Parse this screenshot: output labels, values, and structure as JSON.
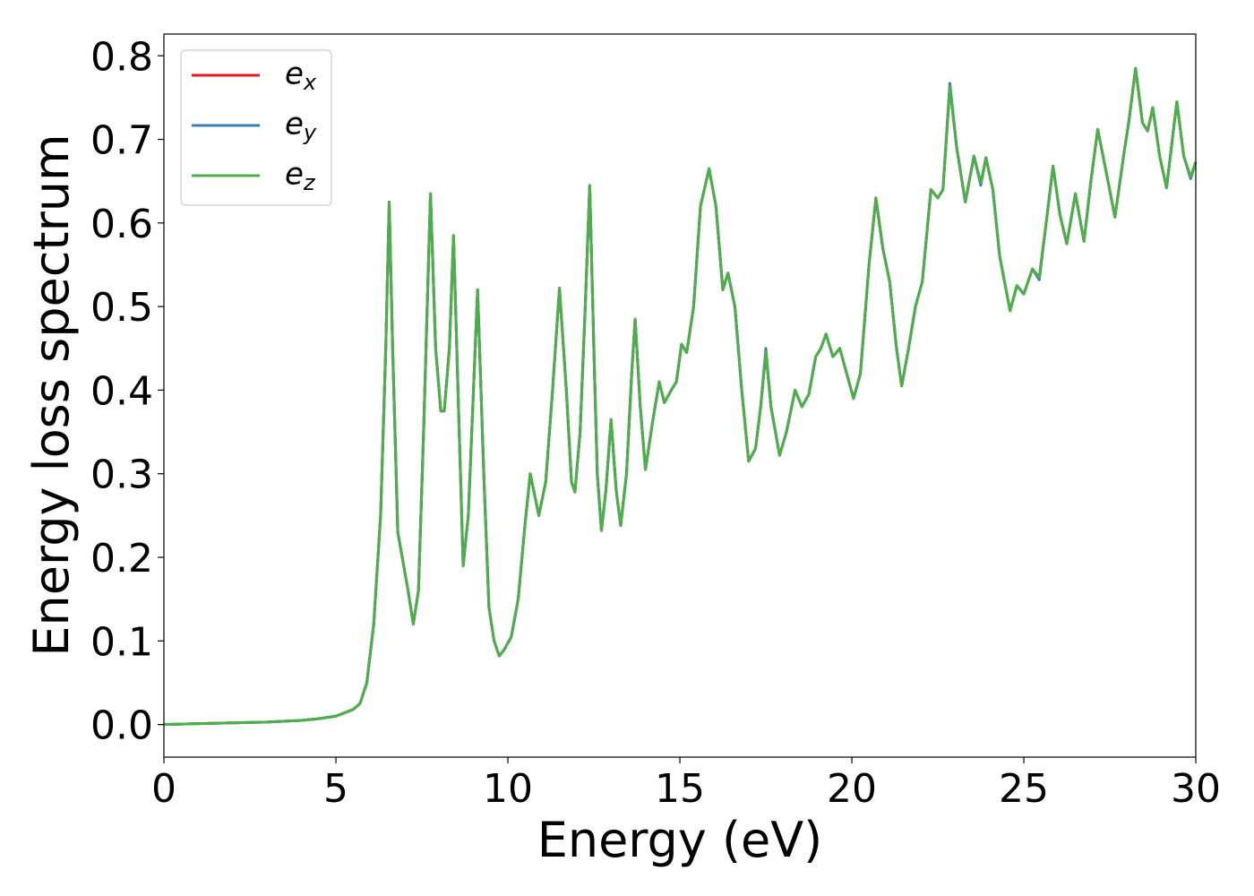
{
  "chart_data": {
    "type": "line",
    "xlabel": "Energy (eV)",
    "ylabel": "Energy loss spectrum",
    "x": [
      0,
      1,
      2,
      3,
      4,
      4.5,
      5,
      5.5,
      5.7,
      5.9,
      6.1,
      6.3,
      6.45,
      6.55,
      6.65,
      6.8,
      6.95,
      7.1,
      7.25,
      7.4,
      7.55,
      7.75,
      7.9,
      8.05,
      8.15,
      8.3,
      8.42,
      8.55,
      8.7,
      8.85,
      9.0,
      9.12,
      9.3,
      9.45,
      9.6,
      9.75,
      9.9,
      10.1,
      10.3,
      10.5,
      10.65,
      10.8,
      10.9,
      11.1,
      11.3,
      11.5,
      11.7,
      11.85,
      11.95,
      12.1,
      12.25,
      12.38,
      12.5,
      12.6,
      12.72,
      12.85,
      13.0,
      13.15,
      13.28,
      13.45,
      13.6,
      13.7,
      13.85,
      14.0,
      14.2,
      14.4,
      14.55,
      14.75,
      14.9,
      15.05,
      15.2,
      15.4,
      15.6,
      15.85,
      16.05,
      16.25,
      16.4,
      16.6,
      16.8,
      17.0,
      17.2,
      17.35,
      17.5,
      17.65,
      17.9,
      18.1,
      18.35,
      18.55,
      18.75,
      18.95,
      19.1,
      19.25,
      19.45,
      19.65,
      19.85,
      20.05,
      20.25,
      20.5,
      20.7,
      20.9,
      21.1,
      21.3,
      21.45,
      21.65,
      21.85,
      22.05,
      22.3,
      22.5,
      22.65,
      22.85,
      23.05,
      23.3,
      23.55,
      23.75,
      23.9,
      24.1,
      24.3,
      24.6,
      24.8,
      25.0,
      25.25,
      25.45,
      25.65,
      25.85,
      26.05,
      26.25,
      26.5,
      26.75,
      26.95,
      27.15,
      27.4,
      27.65,
      27.9,
      28.05,
      28.25,
      28.45,
      28.6,
      28.75,
      28.95,
      29.15,
      29.45,
      29.65,
      29.85,
      30.0
    ],
    "series": [
      {
        "name": "ex",
        "color": "#e41a1c",
        "values": [
          0,
          0.001,
          0.002,
          0.003,
          0.005,
          0.007,
          0.01,
          0.018,
          0.025,
          0.05,
          0.12,
          0.25,
          0.45,
          0.625,
          0.45,
          0.23,
          0.195,
          0.16,
          0.12,
          0.16,
          0.35,
          0.635,
          0.45,
          0.375,
          0.375,
          0.45,
          0.585,
          0.4,
          0.19,
          0.25,
          0.4,
          0.52,
          0.3,
          0.14,
          0.1,
          0.082,
          0.09,
          0.105,
          0.15,
          0.24,
          0.3,
          0.27,
          0.25,
          0.29,
          0.4,
          0.522,
          0.4,
          0.29,
          0.278,
          0.35,
          0.5,
          0.645,
          0.45,
          0.3,
          0.232,
          0.28,
          0.365,
          0.28,
          0.238,
          0.3,
          0.42,
          0.485,
          0.38,
          0.305,
          0.36,
          0.41,
          0.385,
          0.4,
          0.41,
          0.455,
          0.445,
          0.5,
          0.62,
          0.665,
          0.62,
          0.52,
          0.54,
          0.5,
          0.4,
          0.315,
          0.33,
          0.38,
          0.445,
          0.38,
          0.322,
          0.35,
          0.4,
          0.38,
          0.395,
          0.44,
          0.45,
          0.467,
          0.44,
          0.45,
          0.42,
          0.39,
          0.42,
          0.55,
          0.63,
          0.57,
          0.53,
          0.45,
          0.405,
          0.45,
          0.5,
          0.53,
          0.64,
          0.63,
          0.64,
          0.763,
          0.69,
          0.625,
          0.68,
          0.648,
          0.678,
          0.64,
          0.56,
          0.495,
          0.525,
          0.515,
          0.545,
          0.535,
          0.6,
          0.668,
          0.61,
          0.575,
          0.635,
          0.578,
          0.65,
          0.712,
          0.66,
          0.607,
          0.68,
          0.72,
          0.785,
          0.72,
          0.71,
          0.738,
          0.68,
          0.642,
          0.745,
          0.68,
          0.655,
          0.673
        ]
      },
      {
        "name": "ey",
        "color": "#377eb8",
        "values": [
          0,
          0.001,
          0.002,
          0.003,
          0.005,
          0.007,
          0.01,
          0.018,
          0.025,
          0.05,
          0.12,
          0.25,
          0.45,
          0.625,
          0.45,
          0.23,
          0.195,
          0.16,
          0.12,
          0.16,
          0.35,
          0.635,
          0.45,
          0.375,
          0.375,
          0.45,
          0.585,
          0.4,
          0.19,
          0.25,
          0.4,
          0.52,
          0.3,
          0.14,
          0.1,
          0.082,
          0.09,
          0.105,
          0.15,
          0.24,
          0.3,
          0.27,
          0.25,
          0.29,
          0.4,
          0.522,
          0.4,
          0.29,
          0.278,
          0.35,
          0.5,
          0.645,
          0.45,
          0.3,
          0.232,
          0.28,
          0.365,
          0.28,
          0.238,
          0.3,
          0.42,
          0.485,
          0.38,
          0.305,
          0.36,
          0.41,
          0.385,
          0.4,
          0.41,
          0.455,
          0.445,
          0.5,
          0.62,
          0.665,
          0.62,
          0.52,
          0.54,
          0.5,
          0.4,
          0.315,
          0.33,
          0.38,
          0.45,
          0.38,
          0.322,
          0.35,
          0.4,
          0.38,
          0.395,
          0.44,
          0.45,
          0.467,
          0.44,
          0.45,
          0.42,
          0.39,
          0.42,
          0.55,
          0.63,
          0.57,
          0.53,
          0.45,
          0.405,
          0.45,
          0.5,
          0.53,
          0.64,
          0.63,
          0.64,
          0.767,
          0.69,
          0.625,
          0.68,
          0.645,
          0.678,
          0.64,
          0.56,
          0.495,
          0.525,
          0.515,
          0.545,
          0.532,
          0.6,
          0.668,
          0.61,
          0.575,
          0.635,
          0.578,
          0.65,
          0.712,
          0.66,
          0.607,
          0.68,
          0.72,
          0.785,
          0.72,
          0.71,
          0.738,
          0.68,
          0.642,
          0.745,
          0.68,
          0.653,
          0.673
        ]
      },
      {
        "name": "ez",
        "color": "#4daf4a",
        "values": [
          0,
          0.001,
          0.002,
          0.003,
          0.005,
          0.007,
          0.01,
          0.018,
          0.025,
          0.05,
          0.12,
          0.25,
          0.45,
          0.625,
          0.45,
          0.23,
          0.195,
          0.16,
          0.12,
          0.16,
          0.35,
          0.635,
          0.45,
          0.375,
          0.375,
          0.45,
          0.585,
          0.4,
          0.19,
          0.25,
          0.4,
          0.52,
          0.3,
          0.14,
          0.1,
          0.082,
          0.09,
          0.105,
          0.15,
          0.24,
          0.3,
          0.27,
          0.25,
          0.29,
          0.4,
          0.522,
          0.4,
          0.29,
          0.278,
          0.35,
          0.5,
          0.645,
          0.45,
          0.3,
          0.232,
          0.28,
          0.365,
          0.28,
          0.238,
          0.3,
          0.42,
          0.485,
          0.38,
          0.305,
          0.36,
          0.41,
          0.385,
          0.4,
          0.41,
          0.455,
          0.445,
          0.5,
          0.62,
          0.665,
          0.62,
          0.52,
          0.54,
          0.5,
          0.4,
          0.315,
          0.33,
          0.38,
          0.446,
          0.38,
          0.322,
          0.35,
          0.4,
          0.38,
          0.395,
          0.44,
          0.45,
          0.467,
          0.44,
          0.45,
          0.42,
          0.39,
          0.42,
          0.55,
          0.63,
          0.57,
          0.53,
          0.45,
          0.405,
          0.45,
          0.5,
          0.53,
          0.64,
          0.63,
          0.64,
          0.763,
          0.69,
          0.625,
          0.68,
          0.648,
          0.678,
          0.64,
          0.56,
          0.495,
          0.525,
          0.515,
          0.545,
          0.535,
          0.6,
          0.668,
          0.61,
          0.575,
          0.635,
          0.578,
          0.65,
          0.712,
          0.66,
          0.607,
          0.68,
          0.72,
          0.785,
          0.72,
          0.71,
          0.738,
          0.68,
          0.642,
          0.745,
          0.68,
          0.655,
          0.673
        ]
      }
    ],
    "xlim": [
      0,
      30
    ],
    "xticks": [
      0,
      5,
      10,
      15,
      20,
      25,
      30
    ],
    "ylim": [
      -0.039,
      0.826
    ],
    "yticks": [
      {
        "value": 0,
        "label": "0.0"
      },
      0.1,
      0.2,
      0.3,
      0.4,
      0.5,
      0.6,
      0.7,
      0.8
    ],
    "legend": "upper left"
  }
}
